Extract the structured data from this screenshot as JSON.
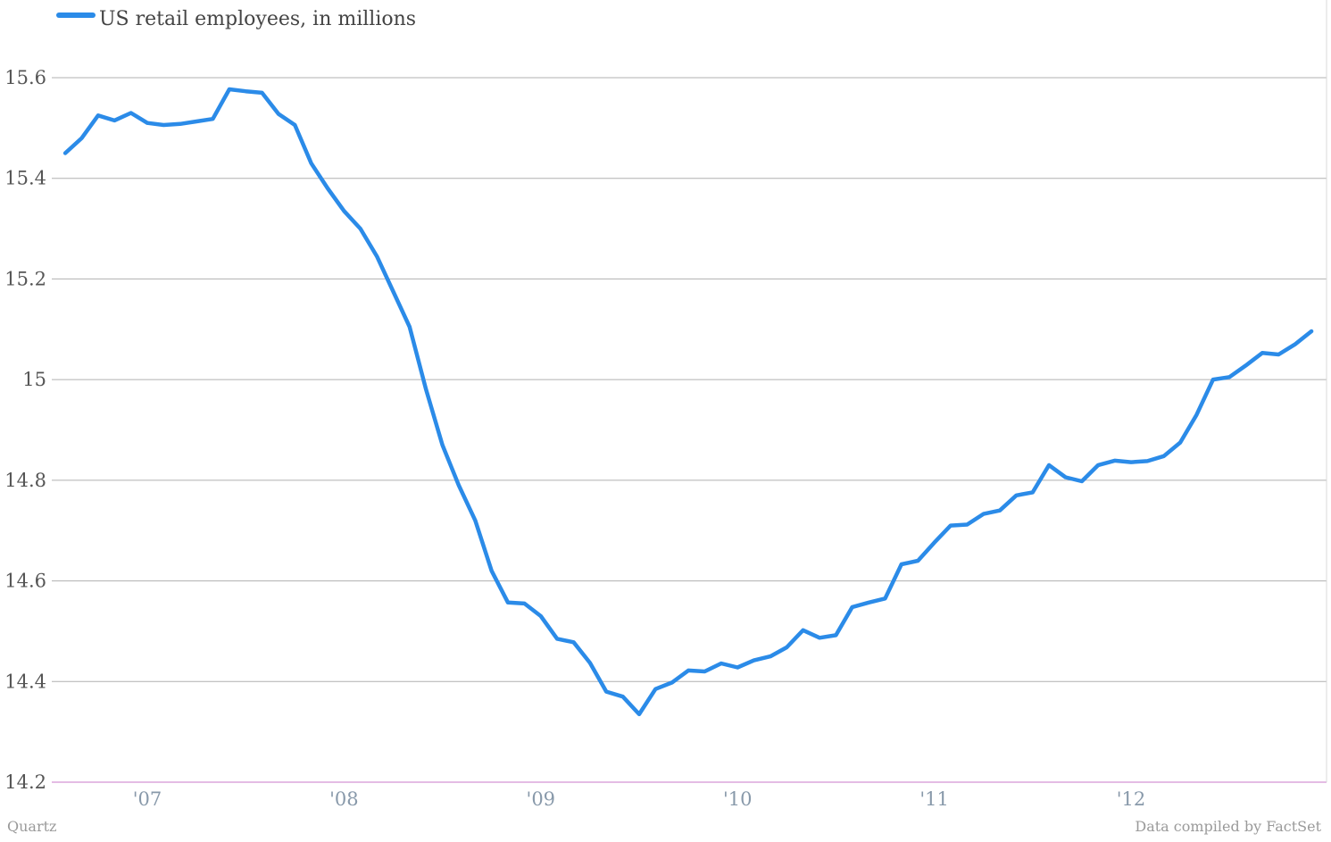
{
  "chart_data": {
    "type": "line",
    "series": [
      {
        "name": "US retail employees, in millions",
        "color": "#2b8be8",
        "x": [
          2006.583,
          2006.667,
          2006.75,
          2006.833,
          2006.917,
          2007.0,
          2007.083,
          2007.167,
          2007.25,
          2007.333,
          2007.417,
          2007.5,
          2007.583,
          2007.667,
          2007.75,
          2007.833,
          2007.917,
          2008.0,
          2008.083,
          2008.167,
          2008.25,
          2008.333,
          2008.417,
          2008.5,
          2008.583,
          2008.667,
          2008.75,
          2008.833,
          2008.917,
          2009.0,
          2009.083,
          2009.167,
          2009.25,
          2009.333,
          2009.417,
          2009.5,
          2009.583,
          2009.667,
          2009.75,
          2009.833,
          2009.917,
          2010.0,
          2010.083,
          2010.167,
          2010.25,
          2010.333,
          2010.417,
          2010.5,
          2010.583,
          2010.667,
          2010.75,
          2010.833,
          2010.917,
          2011.0,
          2011.083,
          2011.167,
          2011.25,
          2011.333,
          2011.417,
          2011.5,
          2011.583,
          2011.667,
          2011.75,
          2011.833,
          2011.917,
          2012.0,
          2012.083,
          2012.167,
          2012.25,
          2012.333,
          2012.417,
          2012.5,
          2012.583,
          2012.667,
          2012.75,
          2012.833,
          2012.917
        ],
        "values": [
          15.45,
          15.48,
          15.525,
          15.515,
          15.53,
          15.51,
          15.506,
          15.508,
          15.513,
          15.518,
          15.577,
          15.573,
          15.57,
          15.528,
          15.506,
          15.43,
          15.38,
          15.335,
          15.3,
          15.245,
          15.175,
          15.105,
          14.98,
          14.87,
          14.79,
          14.72,
          14.62,
          14.557,
          14.555,
          14.53,
          14.485,
          14.478,
          14.437,
          14.38,
          14.37,
          14.335,
          14.385,
          14.398,
          14.422,
          14.42,
          14.436,
          14.428,
          14.442,
          14.45,
          14.468,
          14.502,
          14.487,
          14.492,
          14.548,
          14.557,
          14.565,
          14.633,
          14.64,
          14.676,
          14.71,
          14.712,
          14.733,
          14.74,
          14.77,
          14.776,
          14.83,
          14.806,
          14.798,
          14.83,
          14.839,
          14.836,
          14.838,
          14.848,
          14.875,
          14.93,
          15.0,
          15.005,
          15.028,
          15.053,
          15.05,
          15.07,
          15.096
        ]
      }
    ],
    "ylim": [
      14.2,
      15.7
    ],
    "yticks": [
      {
        "value": 14.2,
        "label": "14.2"
      },
      {
        "value": 14.4,
        "label": "14.4"
      },
      {
        "value": 14.6,
        "label": "14.6"
      },
      {
        "value": 14.8,
        "label": "14.8"
      },
      {
        "value": 15.0,
        "label": "15"
      },
      {
        "value": 15.2,
        "label": "15.2"
      },
      {
        "value": 15.4,
        "label": "15.4"
      },
      {
        "value": 15.6,
        "label": "15.6"
      }
    ],
    "xlim": [
      2006.54,
      2012.97
    ],
    "xticks": [
      {
        "value": 2007.0,
        "label": "'07"
      },
      {
        "value": 2008.0,
        "label": "'08"
      },
      {
        "value": 2009.0,
        "label": "'09"
      },
      {
        "value": 2010.0,
        "label": "'10"
      },
      {
        "value": 2011.0,
        "label": "'11"
      },
      {
        "value": 2012.0,
        "label": "'12"
      }
    ],
    "grid": true,
    "legend_position": "top-left",
    "baseline_color": "#c879c8",
    "grid_color": "#b0b0b0"
  },
  "footer": {
    "source_left": "Quartz",
    "source_right": "Data compiled by FactSet"
  }
}
